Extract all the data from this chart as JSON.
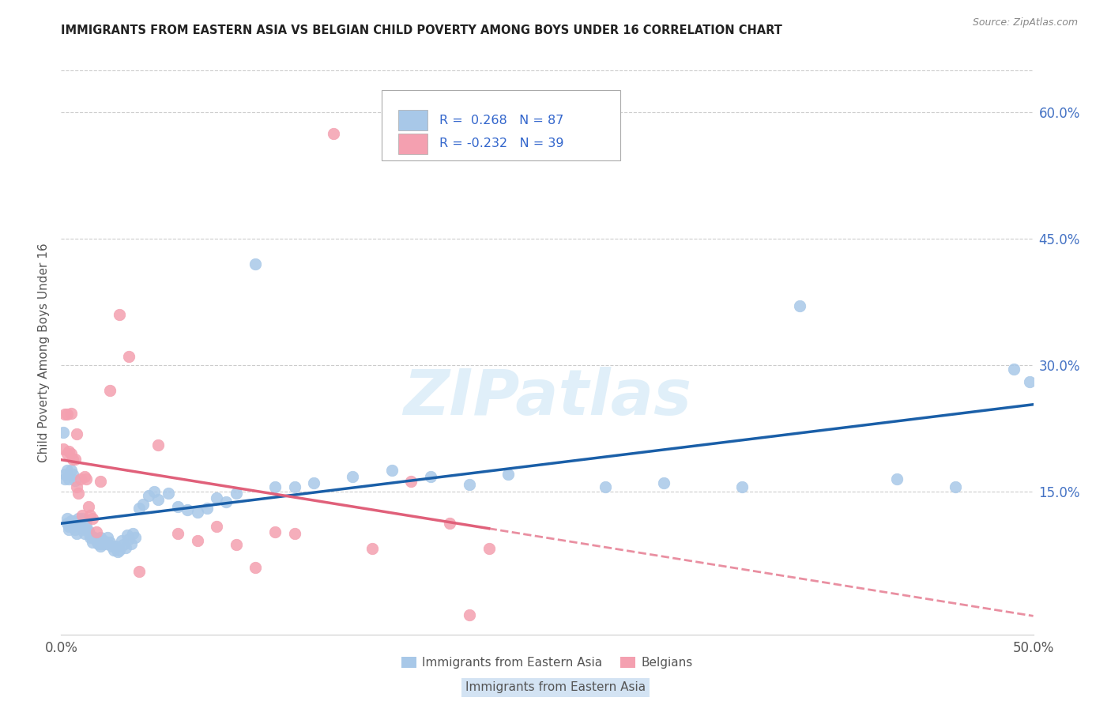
{
  "title": "IMMIGRANTS FROM EASTERN ASIA VS BELGIAN CHILD POVERTY AMONG BOYS UNDER 16 CORRELATION CHART",
  "source": "Source: ZipAtlas.com",
  "ylabel": "Child Poverty Among Boys Under 16",
  "xlim": [
    0.0,
    0.5
  ],
  "ylim": [
    -0.02,
    0.65
  ],
  "xtick_positions": [
    0.0,
    0.5
  ],
  "xtick_labels": [
    "0.0%",
    "50.0%"
  ],
  "ytick_values_right": [
    0.15,
    0.3,
    0.45,
    0.6
  ],
  "ytick_labels_right": [
    "15.0%",
    "30.0%",
    "45.0%",
    "60.0%"
  ],
  "r_blue": 0.268,
  "n_blue": 87,
  "r_pink": -0.232,
  "n_pink": 39,
  "blue_color": "#a8c8e8",
  "pink_color": "#f4a0b0",
  "blue_line_color": "#1a5fa8",
  "pink_line_color": "#e0607a",
  "watermark": "ZIPatlas",
  "blue_scatter_x": [
    0.001,
    0.002,
    0.002,
    0.003,
    0.003,
    0.003,
    0.004,
    0.004,
    0.004,
    0.005,
    0.005,
    0.005,
    0.006,
    0.006,
    0.006,
    0.007,
    0.007,
    0.007,
    0.008,
    0.008,
    0.009,
    0.009,
    0.01,
    0.01,
    0.011,
    0.011,
    0.012,
    0.012,
    0.013,
    0.013,
    0.014,
    0.015,
    0.015,
    0.016,
    0.017,
    0.018,
    0.019,
    0.02,
    0.02,
    0.021,
    0.022,
    0.023,
    0.024,
    0.025,
    0.026,
    0.027,
    0.028,
    0.029,
    0.03,
    0.031,
    0.032,
    0.033,
    0.034,
    0.035,
    0.036,
    0.037,
    0.038,
    0.04,
    0.042,
    0.045,
    0.048,
    0.05,
    0.055,
    0.06,
    0.065,
    0.07,
    0.075,
    0.08,
    0.085,
    0.09,
    0.1,
    0.11,
    0.12,
    0.13,
    0.15,
    0.17,
    0.19,
    0.21,
    0.23,
    0.28,
    0.31,
    0.35,
    0.38,
    0.43,
    0.46,
    0.49,
    0.498
  ],
  "blue_scatter_y": [
    0.22,
    0.17,
    0.165,
    0.175,
    0.118,
    0.112,
    0.165,
    0.108,
    0.105,
    0.175,
    0.115,
    0.11,
    0.17,
    0.115,
    0.108,
    0.163,
    0.11,
    0.105,
    0.1,
    0.11,
    0.118,
    0.113,
    0.115,
    0.11,
    0.118,
    0.108,
    0.105,
    0.1,
    0.115,
    0.108,
    0.103,
    0.098,
    0.095,
    0.09,
    0.095,
    0.092,
    0.088,
    0.085,
    0.095,
    0.088,
    0.092,
    0.088,
    0.095,
    0.09,
    0.085,
    0.08,
    0.085,
    0.078,
    0.08,
    0.092,
    0.087,
    0.083,
    0.098,
    0.093,
    0.088,
    0.1,
    0.095,
    0.13,
    0.135,
    0.145,
    0.15,
    0.14,
    0.148,
    0.132,
    0.128,
    0.125,
    0.13,
    0.142,
    0.138,
    0.148,
    0.42,
    0.155,
    0.155,
    0.16,
    0.168,
    0.175,
    0.168,
    0.158,
    0.17,
    0.155,
    0.16,
    0.155,
    0.37,
    0.165,
    0.155,
    0.295,
    0.28
  ],
  "pink_scatter_x": [
    0.001,
    0.002,
    0.003,
    0.003,
    0.004,
    0.005,
    0.005,
    0.006,
    0.007,
    0.008,
    0.008,
    0.009,
    0.01,
    0.011,
    0.012,
    0.013,
    0.014,
    0.015,
    0.016,
    0.018,
    0.02,
    0.025,
    0.03,
    0.035,
    0.04,
    0.05,
    0.06,
    0.07,
    0.08,
    0.09,
    0.1,
    0.11,
    0.12,
    0.14,
    0.16,
    0.18,
    0.2,
    0.21,
    0.22
  ],
  "pink_scatter_y": [
    0.2,
    0.242,
    0.242,
    0.195,
    0.198,
    0.243,
    0.195,
    0.188,
    0.188,
    0.218,
    0.155,
    0.148,
    0.165,
    0.122,
    0.168,
    0.165,
    0.132,
    0.122,
    0.118,
    0.102,
    0.162,
    0.27,
    0.36,
    0.31,
    0.055,
    0.205,
    0.1,
    0.092,
    0.108,
    0.087,
    0.06,
    0.102,
    0.1,
    0.575,
    0.082,
    0.162,
    0.112,
    0.003,
    0.082
  ]
}
